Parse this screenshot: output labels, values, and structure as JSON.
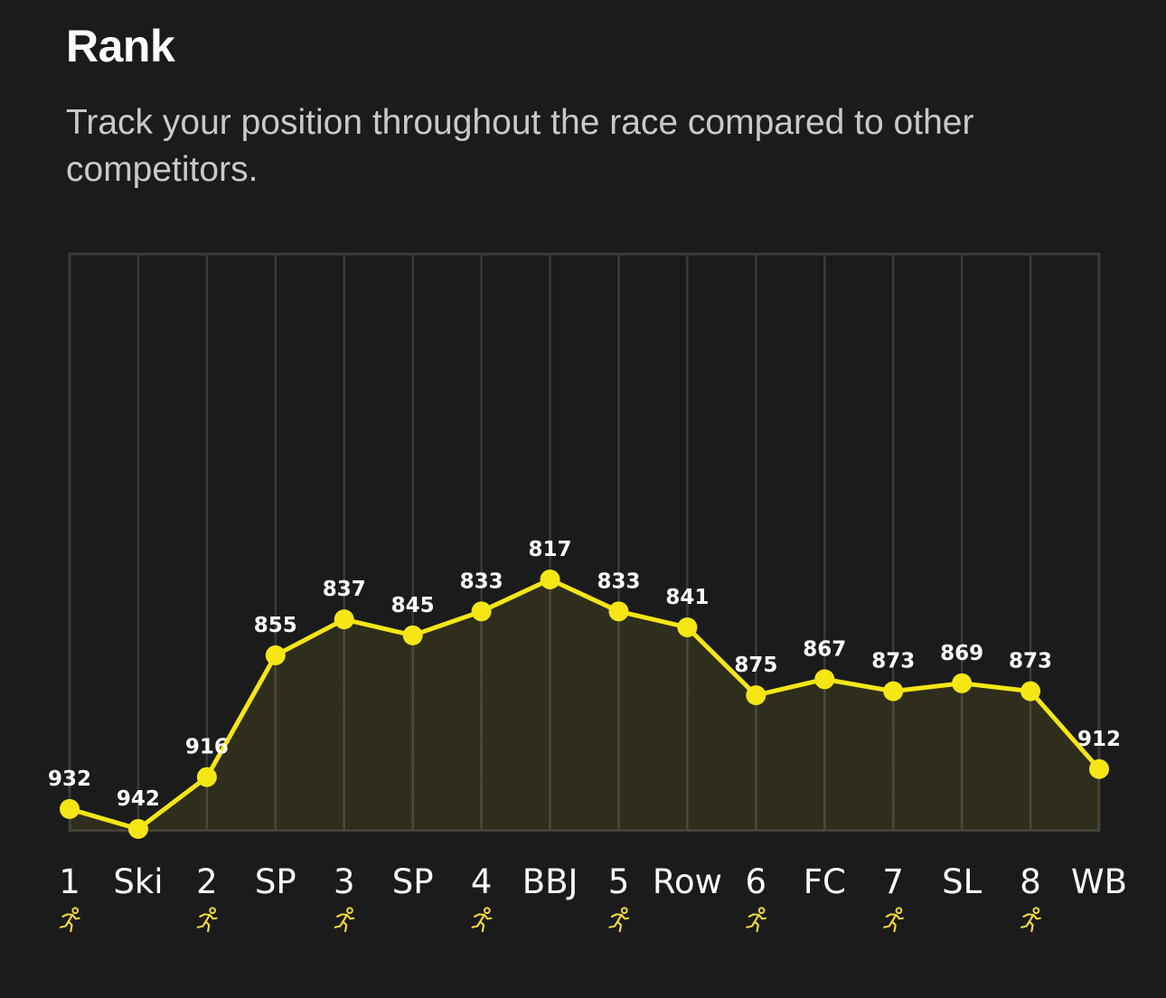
{
  "header": {
    "title": "Rank",
    "subtitle": "Track your position throughout the race compared to other competitors."
  },
  "colors": {
    "background": "#1b1b1b",
    "grid": "#3a3a3a",
    "line": "#f5e614",
    "marker": "#f5e614",
    "run_icon": "#f2d93a",
    "text": "#ffffff",
    "subtitle": "#c9c9c9"
  },
  "chart_data": {
    "type": "area",
    "title": "Rank",
    "subtitle": "Track your position throughout the race compared to other competitors.",
    "xlabel": "",
    "ylabel": "",
    "y_inverted": true,
    "ylim": [
      942,
      817
    ],
    "grid": {
      "vertical": true,
      "horizontal": false
    },
    "legend": null,
    "categories": [
      "1",
      "Ski",
      "2",
      "SP",
      "3",
      "SP",
      "4",
      "BBJ",
      "5",
      "Row",
      "6",
      "FC",
      "7",
      "SL",
      "8",
      "WB"
    ],
    "run_segments": [
      true,
      false,
      true,
      false,
      true,
      false,
      true,
      false,
      true,
      false,
      true,
      false,
      true,
      false,
      true,
      false
    ],
    "series": [
      {
        "name": "Rank",
        "values": [
          932,
          942,
          916,
          855,
          837,
          845,
          833,
          817,
          833,
          841,
          875,
          867,
          873,
          869,
          873,
          912
        ]
      }
    ]
  }
}
